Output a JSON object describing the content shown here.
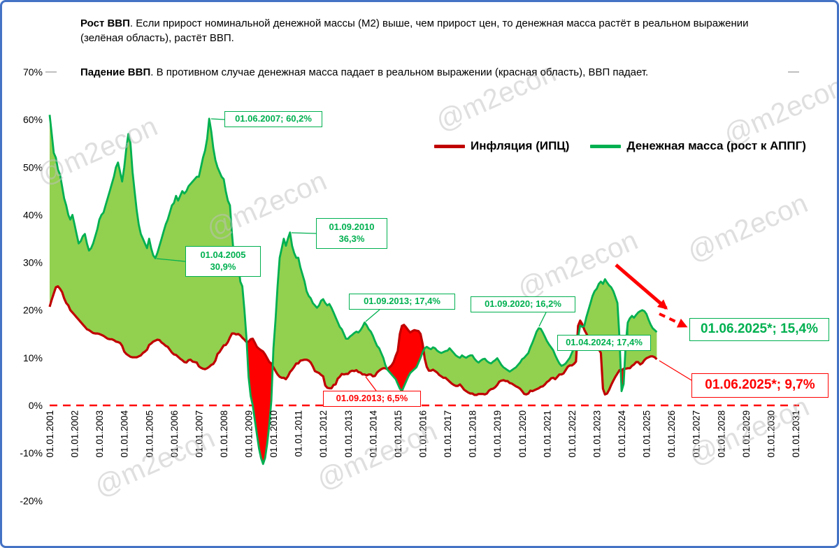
{
  "frame": {
    "border_color": "#4472C4",
    "background": "#FFFFFF"
  },
  "header": {
    "para1_bold": "Рост ВВП",
    "para1_rest": ". Если прирост номинальной денежной массы (М2) выше, чем прирост цен,  то денежная масса растёт в реальном выражении (зелёная область), растёт ВВП.",
    "para2_bold": "Падение ВВП",
    "para2_rest": ". В противном случае денежная масса падает в реальном выражении (красная область), ВВП падает."
  },
  "legend": [
    {
      "label": "Инфляция (ИПЦ)",
      "color": "#C00000"
    },
    {
      "label": "Денежная масса (рост к АППГ)",
      "color": "#00B050"
    }
  ],
  "watermark": "@m2econ",
  "chart_data": {
    "type": "area",
    "title": "",
    "xlabel": "",
    "ylabel": "",
    "x_range": [
      2001,
      2031
    ],
    "y_range": [
      -20,
      70
    ],
    "grid": false,
    "legend_position": "top-right",
    "y_ticks": [
      {
        "label": "70%",
        "value": 70
      },
      {
        "label": "60%",
        "value": 60
      },
      {
        "label": "50%",
        "value": 50
      },
      {
        "label": "40%",
        "value": 40
      },
      {
        "label": "30%",
        "value": 30
      },
      {
        "label": "20%",
        "value": 20
      },
      {
        "label": "10%",
        "value": 10
      },
      {
        "label": "0%",
        "value": 0
      },
      {
        "label": "-10%",
        "value": -10
      },
      {
        "label": "-20%",
        "value": -20
      }
    ],
    "x_ticks": [
      "01.01.2001",
      "01.01.2002",
      "01.01.2003",
      "01.01.2004",
      "01.01.2005",
      "01.01.2006",
      "01.01.2007",
      "01.01.2008",
      "01.01.2009",
      "01.01.2010",
      "01.01.2011",
      "01.01.2012",
      "01.01.2013",
      "01.01.2014",
      "01.01.2015",
      "01.01.2016",
      "01.01.2017",
      "01.01.2018",
      "01.01.2019",
      "01.01.2020",
      "01.01.2021",
      "01.01.2022",
      "01.01.2023",
      "01.01.2024",
      "01.01.2025",
      "01.01.2026",
      "01.01.2027",
      "01.01.2028",
      "01.01.2029",
      "01.01.2030",
      "01.01.2031"
    ],
    "zero_line": {
      "value": 0,
      "style": "dashed",
      "color": "#FF0000"
    },
    "colors": {
      "inflation_line": "#C00000",
      "m2_line": "#00B050",
      "growth_fill": "#92D050",
      "decline_fill": "#FF0000"
    },
    "annotation_colors": {
      "green": "#00B050",
      "red": "#FF0000"
    },
    "trend_arrows": {
      "color": "#FF0000",
      "styles": [
        "solid",
        "dashed"
      ]
    },
    "series": [
      {
        "name": "Инфляция (ИПЦ)",
        "start_year": 2001,
        "step_months": 1,
        "monthly_values": [
          20.7,
          22.2,
          23.5,
          24.8,
          25,
          24.5,
          23.8,
          22.5,
          21.5,
          21,
          20,
          19.5,
          19,
          18.5,
          18,
          17.5,
          17,
          16.5,
          16,
          15.8,
          15.5,
          15.2,
          15.1,
          15.1,
          15,
          14.8,
          14.6,
          14.3,
          14,
          13.9,
          13.9,
          13.7,
          13.4,
          13.3,
          13.1,
          12.5,
          11.3,
          10.8,
          10.5,
          10.2,
          10.1,
          10.1,
          10.1,
          10.3,
          10.5,
          11,
          11.3,
          11.7,
          12.7,
          13,
          13.4,
          13.6,
          13.8,
          13.7,
          13.2,
          12.9,
          12.5,
          12.3,
          11.7,
          11.1,
          10.7,
          10.6,
          10.2,
          9.8,
          9.5,
          9.1,
          9,
          9.5,
          9.6,
          9.2,
          9.1,
          9,
          8.2,
          7.9,
          7.7,
          7.6,
          7.8,
          8.1,
          8.5,
          8.7,
          9.4,
          10.8,
          11.2,
          11.9,
          12.6,
          12.7,
          13.3,
          14.3,
          15.1,
          15.1,
          14.9,
          15,
          14.7,
          14.2,
          13.8,
          13.3,
          13.4,
          13.9,
          14,
          13.2,
          12.3,
          11.9,
          11.6,
          11.3,
          10.7,
          9.9,
          9.1,
          8.8,
          8,
          7.2,
          6.5,
          6,
          5.8,
          5.8,
          5.5,
          6.1,
          7,
          7.5,
          8.1,
          8.8,
          8.8,
          9.4,
          9.5,
          9.6,
          9.6,
          9.4,
          9,
          8.2,
          7.2,
          7,
          6.8,
          6.4,
          6.1,
          4.2,
          3.7,
          3.6,
          3.6,
          4.3,
          4.4,
          5.6,
          6,
          6.6,
          6.5,
          6.6,
          6.6,
          7.1,
          7.3,
          7.2,
          7.4,
          7,
          6.9,
          6.5,
          6.5,
          6.3,
          6.5,
          6.5,
          6.1,
          6.2,
          6.9,
          7.3,
          7.6,
          7.8,
          7.8,
          7.6,
          8,
          8.4,
          9.1,
          10.4,
          11.4,
          15,
          16.7,
          16.9,
          16.4,
          15.8,
          15.3,
          15.6,
          15.8,
          15.7,
          15.6,
          15,
          12.9,
          9.8,
          8.1,
          7.3,
          7.3,
          7.5,
          7.2,
          6.9,
          6.4,
          6.1,
          5.8,
          5.8,
          5.4,
          5,
          4.6,
          4.3,
          4.1,
          4.1,
          4.4,
          3.9,
          3.3,
          3,
          2.7,
          2.5,
          2.5,
          2.2,
          2.2,
          2.4,
          2.4,
          2.4,
          2.3,
          2.5,
          3.1,
          3.4,
          3.5,
          3.8,
          4.3,
          5,
          5.2,
          5.3,
          5.1,
          5.1,
          4.7,
          4.6,
          4.3,
          4,
          3.8,
          3.5,
          3,
          2.4,
          2.3,
          2.5,
          3.1,
          3,
          3.2,
          3.4,
          3.6,
          3.9,
          4,
          4.4,
          4.9,
          5.2,
          5.7,
          5.8,
          5.5,
          6,
          6.5,
          6.5,
          6.7,
          7.4,
          8.1,
          8.4,
          8.4,
          8.7,
          9.2,
          16.7,
          17.8,
          17.1,
          15.9,
          15.1,
          14.3,
          13.7,
          12.6,
          12,
          11.9,
          11.8,
          11,
          3.5,
          2.3,
          2.5,
          3.3,
          4.3,
          5.2,
          6,
          6.7,
          7.4,
          7.4,
          7.7,
          7.7,
          7.8,
          7.8,
          8.3,
          8.6,
          9.1,
          9.1,
          8.6,
          8.9,
          9.5,
          9.9,
          10.1,
          10.3,
          10.3,
          10.1,
          9.7
        ]
      },
      {
        "name": "Денежная масса (рост к АППГ)",
        "start_year": 2001,
        "step_months": 1,
        "monthly_values": [
          61,
          57,
          53,
          52,
          49.5,
          48.5,
          46,
          43.5,
          42,
          40,
          39,
          40,
          38,
          36,
          34,
          34.5,
          35.5,
          36,
          34,
          32.5,
          33,
          34,
          35.5,
          37,
          39,
          40,
          40.5,
          42,
          43.5,
          45,
          46.5,
          48,
          50,
          51,
          49,
          47,
          50,
          54,
          57,
          55,
          49,
          45,
          41,
          38,
          36,
          35,
          34,
          33,
          35,
          33,
          31.5,
          30.9,
          32,
          33.5,
          35,
          36.5,
          38,
          39,
          40.5,
          42,
          42.5,
          44,
          43,
          44,
          45,
          44.5,
          45,
          46,
          46.5,
          47,
          47.5,
          48,
          48,
          50,
          52,
          53.5,
          56,
          60.2,
          57.5,
          54,
          51.5,
          50,
          49,
          48,
          47.5,
          45,
          43,
          42,
          36,
          31,
          31,
          30,
          26,
          25,
          20,
          14,
          6,
          2,
          0,
          -3,
          -6,
          -9,
          -11,
          -12.3,
          -11,
          -8,
          -4,
          1,
          12,
          18,
          25,
          31,
          33,
          35,
          33.5,
          35,
          36.3,
          33.5,
          32,
          31,
          31,
          29,
          27.5,
          26,
          24,
          23,
          22.5,
          21.5,
          21,
          20.5,
          21,
          22,
          22.3,
          21.5,
          21,
          21.3,
          20.5,
          19.5,
          18.5,
          17.5,
          16.5,
          16,
          15,
          14,
          14,
          14.5,
          14.8,
          15.2,
          15.5,
          15.3,
          15.8,
          16.5,
          17.4,
          16.8,
          16,
          15.5,
          14.6,
          13.5,
          12.5,
          12,
          11,
          10,
          8.5,
          7.5,
          7,
          6.5,
          6,
          5.5,
          4.5,
          3.5,
          3,
          4,
          5,
          6,
          6.8,
          7.2,
          7.6,
          8,
          9,
          10,
          11.2,
          12,
          12.3,
          12,
          11.8,
          12.2,
          12,
          11.5,
          11.2,
          11,
          11.2,
          11.4,
          11.5,
          12,
          11.5,
          11,
          10.5,
          10.2,
          10,
          10.5,
          10.2,
          10,
          10.3,
          10.5,
          10.5,
          9.8,
          9.3,
          9,
          9.4,
          9.7,
          9.8,
          9.3,
          9,
          8.8,
          9.2,
          9.5,
          9.9,
          9.2,
          8.5,
          8,
          7.7,
          7.4,
          7.1,
          7.4,
          7.7,
          8,
          8.5,
          9,
          9.7,
          10,
          10.5,
          11,
          12.2,
          13.2,
          14.3,
          15.5,
          16.2,
          16.1,
          15.3,
          14.4,
          13.5,
          12.8,
          12.2,
          11.6,
          10.5,
          9.6,
          8.8,
          8.3,
          8.5,
          8.8,
          9.4,
          10,
          11,
          12,
          13.5,
          14.2,
          16.8,
          16.5,
          16.7,
          18.5,
          20,
          21.5,
          23,
          24,
          24.5,
          25.5,
          26,
          25.5,
          26.5,
          25.8,
          25.2,
          24.8,
          24,
          22.8,
          21.5,
          14,
          3,
          4.5,
          13,
          17.4,
          18.3,
          18.8,
          18.4,
          19,
          19.5,
          19.8,
          20,
          19.8,
          19.2,
          18,
          17,
          16.2,
          15.8,
          15.4
        ]
      }
    ],
    "annotations": [
      {
        "text": "01.06.2007; 60,2%",
        "t": 2007.42,
        "v": 60.2,
        "color": "green"
      },
      {
        "text": "01.04.2005",
        "text2": "30,9%",
        "t": 2005.25,
        "v": 30.9,
        "color": "green"
      },
      {
        "text": "01.09.2010",
        "text2": "36,3%",
        "t": 2010.67,
        "v": 36.3,
        "color": "green"
      },
      {
        "text": "01.09.2013; 17,4%",
        "t": 2013.67,
        "v": 17.4,
        "color": "green"
      },
      {
        "text": "01.09.2020; 16,2%",
        "t": 2020.67,
        "v": 16.2,
        "color": "green"
      },
      {
        "text": "01.04.2024; 17,4%",
        "t": 2024.25,
        "v": 17.4,
        "color": "green"
      },
      {
        "text": "01.06.2025*; 15,4%",
        "t": 2025.42,
        "v": 15.4,
        "color": "green",
        "big": true
      },
      {
        "text": "01.09.2013; 6,5%",
        "t": 2013.67,
        "v": 6.5,
        "color": "red"
      },
      {
        "text": "01.06.2025*; 9,7%",
        "t": 2025.42,
        "v": 9.7,
        "color": "red",
        "big": true
      }
    ]
  }
}
